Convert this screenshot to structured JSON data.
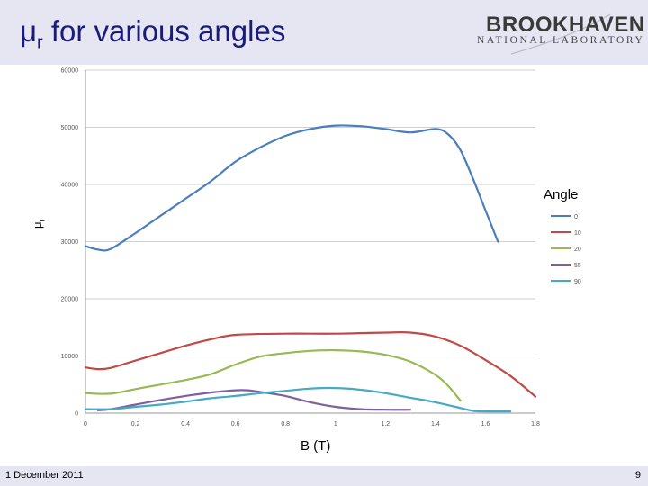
{
  "slide": {
    "title_main": "μ",
    "title_sub": "r",
    "title_rest": " for various angles",
    "logo_top": "BROOKHAVEN",
    "logo_bottom": "NATIONAL LABORATORY",
    "footer_date": "1 December 2011",
    "page_number": "9",
    "brand_color": "#1a1a7a"
  },
  "chart_data": {
    "type": "line",
    "xlabel": "B (T)",
    "ylabel_main": "μ",
    "ylabel_sub": "r",
    "legend_title": "Angle",
    "legend_placement": "right",
    "grid": true,
    "xlim": [
      0,
      1.8
    ],
    "ylim": [
      0,
      60000
    ],
    "x_ticks": [
      "0",
      "0.2",
      "0.4",
      "0.6",
      "0.8",
      "1",
      "1.2",
      "1.4",
      "1.6",
      "1.8"
    ],
    "y_ticks": [
      "0",
      "10000",
      "20000",
      "30000",
      "40000",
      "50000",
      "60000"
    ],
    "series": [
      {
        "name": "0",
        "color": "#4a7ebb",
        "points": [
          [
            0,
            29200
          ],
          [
            0.05,
            28600
          ],
          [
            0.1,
            28700
          ],
          [
            0.2,
            31500
          ],
          [
            0.3,
            34500
          ],
          [
            0.4,
            37500
          ],
          [
            0.5,
            40500
          ],
          [
            0.6,
            44000
          ],
          [
            0.7,
            46500
          ],
          [
            0.8,
            48500
          ],
          [
            0.9,
            49700
          ],
          [
            1.0,
            50300
          ],
          [
            1.1,
            50200
          ],
          [
            1.2,
            49700
          ],
          [
            1.3,
            49100
          ],
          [
            1.4,
            49700
          ],
          [
            1.45,
            48800
          ],
          [
            1.5,
            46000
          ],
          [
            1.55,
            41000
          ],
          [
            1.6,
            35500
          ],
          [
            1.65,
            30000
          ]
        ]
      },
      {
        "name": "10",
        "color": "#be4b48",
        "points": [
          [
            0,
            8000
          ],
          [
            0.05,
            7700
          ],
          [
            0.1,
            7900
          ],
          [
            0.2,
            9200
          ],
          [
            0.3,
            10500
          ],
          [
            0.4,
            11800
          ],
          [
            0.5,
            12900
          ],
          [
            0.6,
            13700
          ],
          [
            0.8,
            13900
          ],
          [
            1.0,
            13900
          ],
          [
            1.2,
            14100
          ],
          [
            1.3,
            14100
          ],
          [
            1.4,
            13400
          ],
          [
            1.5,
            11800
          ],
          [
            1.6,
            9300
          ],
          [
            1.7,
            6500
          ],
          [
            1.8,
            2900
          ]
        ]
      },
      {
        "name": "20",
        "color": "#98b954",
        "points": [
          [
            0,
            3500
          ],
          [
            0.1,
            3400
          ],
          [
            0.2,
            4200
          ],
          [
            0.3,
            5000
          ],
          [
            0.4,
            5800
          ],
          [
            0.5,
            6800
          ],
          [
            0.6,
            8500
          ],
          [
            0.7,
            9900
          ],
          [
            0.8,
            10500
          ],
          [
            0.9,
            10900
          ],
          [
            1.0,
            11000
          ],
          [
            1.1,
            10800
          ],
          [
            1.2,
            10200
          ],
          [
            1.3,
            9000
          ],
          [
            1.4,
            6700
          ],
          [
            1.45,
            4800
          ],
          [
            1.5,
            2200
          ]
        ]
      },
      {
        "name": "55",
        "color": "#7d60a0",
        "points": [
          [
            0.05,
            500
          ],
          [
            0.1,
            700
          ],
          [
            0.2,
            1500
          ],
          [
            0.3,
            2300
          ],
          [
            0.4,
            3000
          ],
          [
            0.5,
            3600
          ],
          [
            0.6,
            4000
          ],
          [
            0.65,
            4000
          ],
          [
            0.7,
            3700
          ],
          [
            0.8,
            3000
          ],
          [
            0.9,
            1900
          ],
          [
            1.0,
            1100
          ],
          [
            1.1,
            700
          ],
          [
            1.2,
            600
          ],
          [
            1.3,
            600
          ]
        ]
      },
      {
        "name": "90",
        "color": "#46aac5",
        "points": [
          [
            0,
            700
          ],
          [
            0.1,
            700
          ],
          [
            0.2,
            1100
          ],
          [
            0.3,
            1500
          ],
          [
            0.4,
            2000
          ],
          [
            0.5,
            2600
          ],
          [
            0.6,
            3000
          ],
          [
            0.7,
            3500
          ],
          [
            0.8,
            3900
          ],
          [
            0.9,
            4300
          ],
          [
            1.0,
            4400
          ],
          [
            1.1,
            4100
          ],
          [
            1.2,
            3500
          ],
          [
            1.3,
            2700
          ],
          [
            1.4,
            1900
          ],
          [
            1.5,
            900
          ],
          [
            1.55,
            400
          ],
          [
            1.6,
            300
          ],
          [
            1.7,
            300
          ]
        ]
      }
    ]
  }
}
